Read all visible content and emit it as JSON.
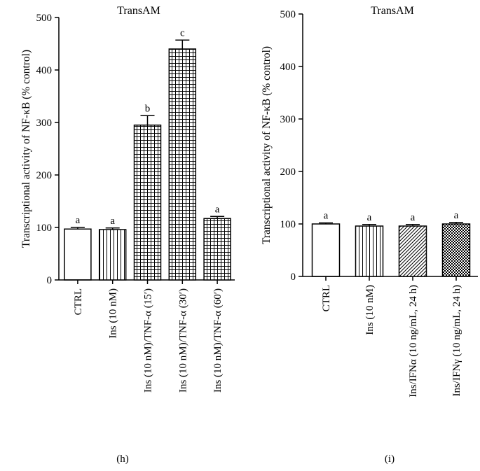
{
  "chart_data": [
    {
      "type": "bar",
      "panel_label": "(h)",
      "title": "TransAM",
      "ylabel": "Transcriptional activity of NF-κB (% control)",
      "ylim": [
        0,
        500
      ],
      "yticks": [
        0,
        100,
        200,
        300,
        400,
        500
      ],
      "categories": [
        "CTRL",
        "Ins (10 nM)",
        "Ins (10 nM)/TNF-α (15′)",
        "Ins (10 nM)/TNF-α (30′)",
        "Ins (10 nM)/TNF-α (60′)"
      ],
      "values": [
        97,
        96,
        295,
        440,
        117
      ],
      "errors": [
        3,
        3,
        18,
        17,
        4
      ],
      "significance_letters": [
        "a",
        "a",
        "b",
        "c",
        "a"
      ],
      "fills": [
        "white",
        "vertical-lines",
        "grid",
        "grid",
        "grid"
      ],
      "grid": false
    },
    {
      "type": "bar",
      "panel_label": "(i)",
      "title": "TransAM",
      "ylabel": "Transcriptional activity of NF-κB (% control)",
      "ylim": [
        0,
        500
      ],
      "yticks": [
        0,
        100,
        200,
        300,
        400,
        500
      ],
      "categories": [
        "CTRL",
        "Ins (10 nM)",
        "Ins/IFNα (10 ng/mL, 24 h)",
        "Ins/IFNγ (10 ng/mL, 24 h)"
      ],
      "values": [
        100,
        96,
        96,
        100
      ],
      "errors": [
        2,
        3,
        3,
        3
      ],
      "significance_letters": [
        "a",
        "a",
        "a",
        "a"
      ],
      "fills": [
        "white",
        "vertical-lines",
        "diagonal-lines",
        "checker"
      ],
      "grid": false
    }
  ]
}
